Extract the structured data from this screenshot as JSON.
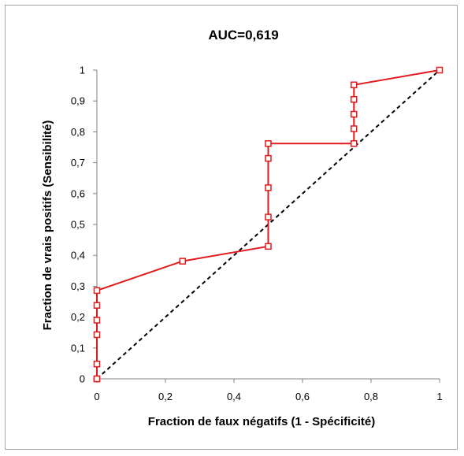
{
  "chart_data": {
    "type": "line",
    "title": "AUC=0,619",
    "xlabel": "Fraction de faux négatifs (1 - Spécificité)",
    "ylabel": "Fraction de vrais positifs (Sensibilité)",
    "xlim": [
      0,
      1
    ],
    "ylim": [
      0,
      1
    ],
    "x_ticks": [
      "0",
      "0,2",
      "0,4",
      "0,6",
      "0,8",
      "1"
    ],
    "y_ticks": [
      "0",
      "0,1",
      "0,2",
      "0,3",
      "0,4",
      "0,5",
      "0,6",
      "0,7",
      "0,8",
      "0,9",
      "1"
    ],
    "grid": false,
    "series": [
      {
        "marker": "square-open",
        "color": "#e31a1c",
        "x": [
          0,
          0,
          0,
          0,
          0,
          0,
          0,
          0.25,
          0.5,
          0.5,
          0.5,
          0.5,
          0.5,
          0.75,
          0.75,
          0.75,
          0.75,
          0.75,
          0.75,
          1
        ],
        "y": [
          0,
          0,
          0.048,
          0.143,
          0.19,
          0.238,
          0.286,
          0.381,
          0.429,
          0.524,
          0.619,
          0.714,
          0.762,
          0.762,
          0.81,
          0.857,
          0.905,
          0.952,
          0.952,
          1
        ]
      },
      {
        "style": "dashed",
        "color": "#000000",
        "x": [
          0,
          1
        ],
        "y": [
          0,
          1
        ]
      }
    ]
  }
}
